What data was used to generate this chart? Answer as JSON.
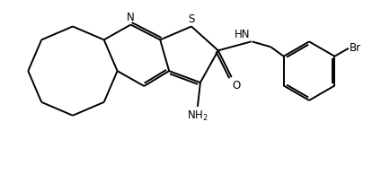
{
  "bg_color": "#ffffff",
  "line_color": "#000000",
  "text_color": "#000000",
  "line_width": 1.4,
  "font_size": 8.5,
  "figsize": [
    4.24,
    1.94
  ],
  "dpi": 100,
  "xlim": [
    0,
    42.4
  ],
  "ylim": [
    0,
    19.4
  ]
}
